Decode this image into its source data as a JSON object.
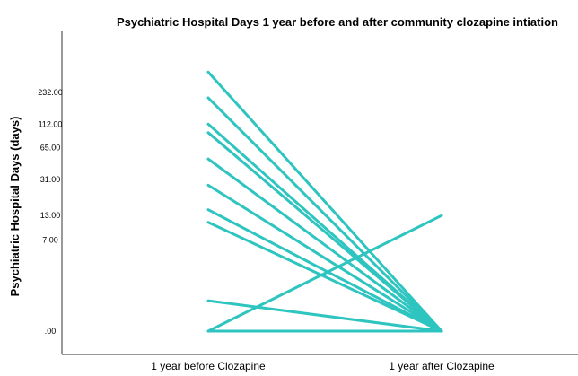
{
  "chart_data": {
    "type": "line",
    "title": "Psychiatric Hospital Days 1 year before and after community clozapine intiation",
    "ylabel": "Psychiatric Hospital Days (days)",
    "xlabel": "",
    "categories": [
      "1 year before Clozapine",
      "1 year after Clozapine"
    ],
    "y_scale": "log",
    "y_ticks": [
      ".00",
      "7.00",
      "13.00",
      "31.00",
      "65.00",
      "112.00",
      "232.00"
    ],
    "y_tick_values": [
      0,
      7,
      13,
      31,
      65,
      112,
      232
    ],
    "line_color": "#2ec4c0",
    "series": [
      {
        "values": [
          370,
          0
        ]
      },
      {
        "values": [
          205,
          0
        ]
      },
      {
        "values": [
          112,
          0
        ]
      },
      {
        "values": [
          92,
          0
        ]
      },
      {
        "values": [
          50,
          0
        ]
      },
      {
        "values": [
          27,
          0
        ]
      },
      {
        "values": [
          15,
          0
        ]
      },
      {
        "values": [
          11,
          0
        ]
      },
      {
        "values": [
          1,
          0
        ]
      },
      {
        "values": [
          0,
          13
        ]
      },
      {
        "values": [
          0,
          0
        ]
      }
    ]
  }
}
